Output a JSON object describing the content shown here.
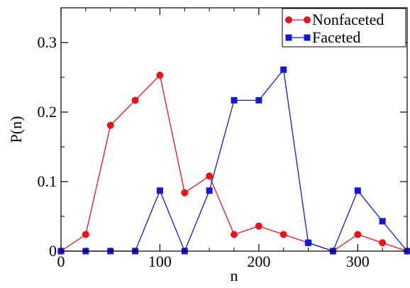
{
  "chart_data": {
    "type": "line",
    "title": "",
    "xlabel": "n",
    "ylabel": "P(n)",
    "xlim": [
      0,
      350
    ],
    "ylim": [
      0,
      0.35
    ],
    "xticks": [
      0,
      100,
      200,
      300
    ],
    "xtick_labels": [
      "0",
      "100",
      "200",
      "300"
    ],
    "yticks": [
      0,
      0.1,
      0.2,
      0.3
    ],
    "ytick_labels": [
      "0",
      "0.1",
      "0.2",
      "0.3"
    ],
    "grid": false,
    "legend_position": "top-right",
    "x": [
      0,
      25,
      50,
      75,
      100,
      125,
      150,
      175,
      200,
      225,
      250,
      275,
      300,
      325,
      350
    ],
    "series": [
      {
        "name": "Nonfaceted",
        "color": "#e8141c",
        "marker": "circle",
        "values": [
          0,
          0.024,
          0.181,
          0.217,
          0.253,
          0.084,
          0.108,
          0.024,
          0.036,
          0.024,
          0.012,
          0,
          0.024,
          0.012,
          0
        ]
      },
      {
        "name": "Faceted",
        "color": "#1418d4",
        "marker": "square",
        "values": [
          0,
          0,
          0,
          0,
          0.087,
          0,
          0.087,
          0.217,
          0.217,
          0.261,
          0.012,
          0,
          0.087,
          0.043,
          0
        ]
      }
    ]
  }
}
